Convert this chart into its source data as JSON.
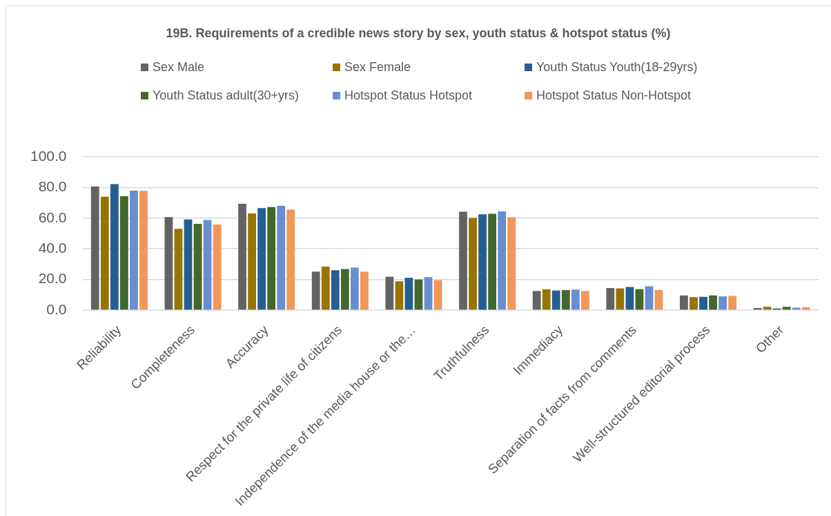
{
  "chart_data": {
    "type": "bar",
    "title": "19B. Requirements of a credible news story by sex, youth status & hotspot status (%)",
    "categories": [
      "Reliability",
      "Completeness",
      "Accuracy",
      "Respect for the private life of citizens",
      "Independence of the media house or the…",
      "Truthfulness",
      "Immediacy",
      "Separation of facts from comments",
      "Well-structured editorial process",
      "Other"
    ],
    "series": [
      {
        "name": "Sex Male",
        "color": "#636363",
        "values": [
          80.6,
          60.7,
          69.4,
          25.1,
          21.8,
          64.2,
          12.5,
          14.4,
          9.6,
          1.4
        ]
      },
      {
        "name": "Sex Female",
        "color": "#997300",
        "values": [
          74.0,
          53.0,
          63.1,
          28.4,
          18.8,
          60.1,
          13.6,
          14.2,
          8.5,
          2.2
        ]
      },
      {
        "name": "Youth Status Youth(18-29yrs)",
        "color": "#255e91",
        "values": [
          82.2,
          59.1,
          66.6,
          26.0,
          21.1,
          62.5,
          12.8,
          15.1,
          8.7,
          1.1
        ]
      },
      {
        "name": "Youth Status adult(30+yrs)",
        "color": "#43682b",
        "values": [
          74.3,
          56.3,
          67.2,
          26.8,
          20.0,
          62.8,
          13.1,
          13.7,
          9.6,
          2.2
        ]
      },
      {
        "name": "Hotspot Status Hotspot",
        "color": "#698ed0",
        "values": [
          77.9,
          58.8,
          68.0,
          27.8,
          21.5,
          64.4,
          13.4,
          15.6,
          9.0,
          1.6
        ]
      },
      {
        "name": "Hotspot Status Non-Hotspot",
        "color": "#f1975a",
        "values": [
          77.8,
          55.8,
          65.6,
          25.1,
          19.6,
          60.6,
          12.5,
          13.2,
          9.3,
          1.9
        ]
      }
    ],
    "ylim": [
      0,
      100
    ],
    "yticks": [
      {
        "value": 0,
        "label": "0.0"
      },
      {
        "value": 20,
        "label": "20.0"
      },
      {
        "value": 40,
        "label": "40.0"
      },
      {
        "value": 60,
        "label": "60.0"
      },
      {
        "value": 80,
        "label": "80.0"
      },
      {
        "value": 100,
        "label": "100.0"
      }
    ],
    "grid": "y",
    "legend": "top"
  }
}
